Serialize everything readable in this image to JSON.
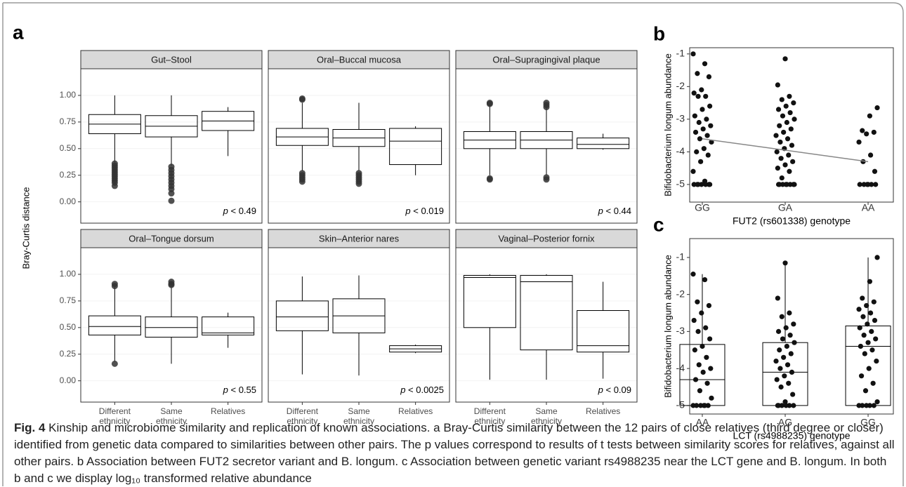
{
  "chart_data": [
    {
      "type": "facet_boxplot",
      "panel_label": "a",
      "ylabel": "Bray-Curtis distance",
      "categories": [
        "Different ethnicity",
        "Same ethnicity",
        "Relatives"
      ],
      "ylim": [
        -0.2,
        1.25
      ],
      "yticks": [
        {
          "value": 0,
          "label": "0.00"
        },
        0.25,
        {
          "value": 0.5,
          "label": "0.50"
        },
        0.75,
        {
          "value": 1,
          "label": "1.00"
        }
      ],
      "facets": [
        {
          "title": "Gut–Stool",
          "annotation": "p < 0.49",
          "boxes": [
            {
              "whislo": 0.37,
              "q1": 0.64,
              "median": 0.73,
              "q3": 0.82,
              "whishi": 1.0,
              "outliers": [
                0.36,
                0.34,
                0.32,
                0.3,
                0.28,
                0.26,
                0.24,
                0.22,
                0.2,
                0.18,
                0.15
              ]
            },
            {
              "whislo": 0.34,
              "q1": 0.61,
              "median": 0.71,
              "q3": 0.81,
              "whishi": 1.0,
              "outliers": [
                0.33,
                0.3,
                0.27,
                0.24,
                0.21,
                0.18,
                0.15,
                0.12,
                0.08,
                0.01
              ]
            },
            {
              "whislo": 0.43,
              "q1": 0.67,
              "median": 0.76,
              "q3": 0.85,
              "whishi": 0.89,
              "outliers": []
            }
          ]
        },
        {
          "title": "Oral–Buccal mucosa",
          "annotation": "p < 0.019",
          "boxes": [
            {
              "whislo": 0.29,
              "q1": 0.53,
              "median": 0.61,
              "q3": 0.69,
              "whishi": 0.93,
              "outliers": [
                0.97,
                0.96,
                0.27,
                0.25,
                0.23,
                0.21,
                0.19
              ]
            },
            {
              "whislo": 0.29,
              "q1": 0.52,
              "median": 0.6,
              "q3": 0.68,
              "whishi": 0.93,
              "outliers": [
                0.27,
                0.25,
                0.23,
                0.21,
                0.19,
                0.17
              ]
            },
            {
              "whislo": 0.25,
              "q1": 0.35,
              "median": 0.57,
              "q3": 0.69,
              "whishi": 0.71,
              "outliers": []
            }
          ]
        },
        {
          "title": "Oral–Supragingival plaque",
          "annotation": "p < 0.44",
          "boxes": [
            {
              "whislo": 0.25,
              "q1": 0.5,
              "median": 0.58,
              "q3": 0.66,
              "whishi": 0.91,
              "outliers": [
                0.93,
                0.92,
                0.22,
                0.21
              ]
            },
            {
              "whislo": 0.25,
              "q1": 0.5,
              "median": 0.58,
              "q3": 0.66,
              "whishi": 0.91,
              "outliers": [
                0.93,
                0.91,
                0.89,
                0.23,
                0.21
              ]
            },
            {
              "whislo": 0.49,
              "q1": 0.5,
              "median": 0.54,
              "q3": 0.6,
              "whishi": 0.64,
              "outliers": []
            }
          ]
        },
        {
          "title": "Oral–Tongue dorsum",
          "annotation": "p < 0.55",
          "boxes": [
            {
              "whislo": 0.18,
              "q1": 0.43,
              "median": 0.51,
              "q3": 0.61,
              "whishi": 0.88,
              "outliers": [
                0.91,
                0.89,
                0.16
              ]
            },
            {
              "whislo": 0.16,
              "q1": 0.41,
              "median": 0.5,
              "q3": 0.6,
              "whishi": 0.88,
              "outliers": [
                0.93,
                0.91,
                0.9
              ]
            },
            {
              "whislo": 0.31,
              "q1": 0.43,
              "median": 0.45,
              "q3": 0.6,
              "whishi": 0.64,
              "outliers": []
            }
          ]
        },
        {
          "title": "Skin–Anterior nares",
          "annotation": "p  < 0.0025",
          "boxes": [
            {
              "whislo": 0.06,
              "q1": 0.47,
              "median": 0.6,
              "q3": 0.75,
              "whishi": 0.98,
              "outliers": []
            },
            {
              "whislo": 0.05,
              "q1": 0.45,
              "median": 0.61,
              "q3": 0.77,
              "whishi": 0.99,
              "outliers": []
            },
            {
              "whislo": 0.26,
              "q1": 0.27,
              "median": 0.3,
              "q3": 0.33,
              "whishi": 0.34,
              "outliers": []
            }
          ]
        },
        {
          "title": "Vaginal–Posterior fornix",
          "annotation": "p < 0.09",
          "boxes": [
            {
              "whislo": 0.01,
              "q1": 0.5,
              "median": 0.97,
              "q3": 0.99,
              "whishi": 1.0,
              "outliers": []
            },
            {
              "whislo": 0.01,
              "q1": 0.29,
              "median": 0.93,
              "q3": 0.99,
              "whishi": 1.0,
              "outliers": []
            },
            {
              "whislo": 0.02,
              "q1": 0.27,
              "median": 0.33,
              "q3": 0.66,
              "whishi": 0.93,
              "outliers": []
            }
          ]
        }
      ]
    },
    {
      "type": "strip",
      "panel_label": "b",
      "ylabel": "Bifidobacterium longum abundance",
      "xlabel": "FUT2 (rs601338) genotype",
      "categories": [
        "GG",
        "GA",
        "AA"
      ],
      "ylim": [
        -5.54,
        -0.81
      ],
      "yticks": [
        -5,
        -4,
        -3,
        -2,
        -1
      ],
      "trend": [
        -3.6,
        -3.95,
        -4.3
      ],
      "groups": [
        [
          -1.0,
          -1.3,
          -1.6,
          -1.7,
          -2.1,
          -2.2,
          -2.3,
          -2.3,
          -2.6,
          -2.7,
          -2.9,
          -3.0,
          -3.1,
          -3.2,
          -3.3,
          -3.4,
          -3.5,
          -3.6,
          -3.7,
          -3.9,
          -4.0,
          -4.1,
          -4.3,
          -4.6,
          -4.9,
          -5,
          -5,
          -5,
          -5,
          -5,
          -5,
          -5
        ],
        [
          -1.15,
          -1.95,
          -2.3,
          -2.4,
          -2.5,
          -2.6,
          -2.7,
          -2.8,
          -2.9,
          -3.0,
          -3.1,
          -3.2,
          -3.3,
          -3.4,
          -3.5,
          -3.6,
          -3.7,
          -3.8,
          -3.9,
          -4.0,
          -4.1,
          -4.2,
          -4.3,
          -4.4,
          -4.5,
          -4.6,
          -4.8,
          -5,
          -5,
          -5,
          -5,
          -5,
          -5,
          -5,
          -5
        ],
        [
          -2.65,
          -2.9,
          -3.35,
          -3.4,
          -3.45,
          -3.7,
          -4.1,
          -4.3,
          -4.6,
          -5,
          -5,
          -5,
          -5,
          -5,
          -5
        ]
      ]
    },
    {
      "type": "box_strip",
      "panel_label": "c",
      "ylabel": "Bifidobacterium longum abundance",
      "xlabel": "LCT (rs4988235) genotype",
      "categories": [
        "AA",
        "AG",
        "GG"
      ],
      "ylim": [
        -5.23,
        -0.49
      ],
      "yticks": [
        -5,
        -4,
        -3,
        -2,
        -1
      ],
      "boxes": [
        {
          "whislo": -5,
          "q1": -5,
          "median": -4.3,
          "q3": -3.35,
          "whishi": -1.45
        },
        {
          "whislo": -5,
          "q1": -5,
          "median": -4.1,
          "q3": -3.3,
          "whishi": -1.15
        },
        {
          "whislo": -5,
          "q1": -5,
          "median": -3.4,
          "q3": -2.85,
          "whishi": -1.0
        }
      ],
      "groups": [
        [
          -1.45,
          -1.6,
          -2.2,
          -2.3,
          -2.5,
          -2.7,
          -2.9,
          -3.0,
          -3.2,
          -3.4,
          -3.5,
          -3.7,
          -3.9,
          -4.0,
          -4.1,
          -4.3,
          -4.4,
          -4.6,
          -4.8,
          -5,
          -5,
          -5,
          -5,
          -5,
          -5
        ],
        [
          -1.15,
          -2.1,
          -2.5,
          -2.6,
          -2.8,
          -2.9,
          -3.0,
          -3.1,
          -3.2,
          -3.3,
          -3.4,
          -3.5,
          -3.6,
          -3.7,
          -3.8,
          -3.9,
          -4.0,
          -4.1,
          -4.2,
          -4.3,
          -4.4,
          -4.5,
          -4.7,
          -4.9,
          -5,
          -5,
          -5,
          -5,
          -5,
          -5
        ],
        [
          -1.0,
          -1.65,
          -2.1,
          -2.2,
          -2.3,
          -2.4,
          -2.5,
          -2.6,
          -2.7,
          -2.8,
          -2.9,
          -3.0,
          -3.1,
          -3.2,
          -3.3,
          -3.4,
          -3.5,
          -3.6,
          -3.8,
          -4.0,
          -4.2,
          -4.4,
          -4.6,
          -4.9,
          -5,
          -5,
          -5,
          -5,
          -5
        ]
      ]
    }
  ],
  "caption": {
    "label": "Fig. 4",
    "text": "Kinship and microbiome similarity and replication of known associations. a Bray-Curtis similarity between the 12 pairs of close relatives (third degree or closer) identified from genetic data compared to similarities between other pairs. The p values correspond to results of t tests between similarity scores for relatives, against all other pairs. b Association between FUT2 secretor variant and B. longum. c Association between genetic variant rs4988235 near the LCT gene and B. longum. In both b and c we display log₁₀ transformed relative abundance"
  }
}
